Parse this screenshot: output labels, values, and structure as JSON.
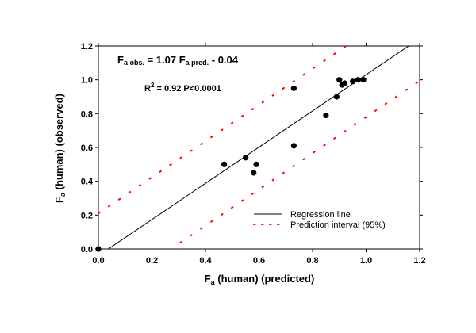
{
  "chart_data": {
    "type": "scatter",
    "xlabel": "F",
    "xlabel_sub": "a",
    "xlabel_rest": " (human) (predicted)",
    "ylabel": "F",
    "ylabel_sub": "a",
    "ylabel_rest": " (human) (observed)",
    "xlim": [
      0.0,
      1.2
    ],
    "ylim": [
      0.0,
      1.2
    ],
    "xticks": [
      "0.0",
      "0.2",
      "0.4",
      "0.6",
      "0.8",
      "1.0",
      "1.2"
    ],
    "yticks": [
      "0.0",
      "0.2",
      "0.4",
      "0.6",
      "0.8",
      "1.0",
      "1.2"
    ],
    "points": [
      {
        "x": 0.0,
        "y": 0.0
      },
      {
        "x": 0.47,
        "y": 0.5
      },
      {
        "x": 0.55,
        "y": 0.54
      },
      {
        "x": 0.58,
        "y": 0.45
      },
      {
        "x": 0.59,
        "y": 0.5
      },
      {
        "x": 0.73,
        "y": 0.61
      },
      {
        "x": 0.73,
        "y": 0.95
      },
      {
        "x": 0.85,
        "y": 0.79
      },
      {
        "x": 0.89,
        "y": 0.9
      },
      {
        "x": 0.9,
        "y": 1.0
      },
      {
        "x": 0.91,
        "y": 0.97
      },
      {
        "x": 0.92,
        "y": 0.98
      },
      {
        "x": 0.95,
        "y": 0.99
      },
      {
        "x": 0.97,
        "y": 1.0
      },
      {
        "x": 0.99,
        "y": 1.0
      }
    ],
    "regression": {
      "slope": 1.07,
      "intercept": -0.04,
      "color": "#000000"
    },
    "prediction_interval": {
      "offset": 0.25,
      "color": "#ff0000"
    },
    "annotations": {
      "equation": {
        "lhs_main": "F",
        "lhs_sub": "a obs.",
        "mid": " = 1.07 F",
        "rhs_sub": "a pred.",
        "rest": " - 0.04"
      },
      "stats": {
        "r_main": "R",
        "r_sup": "2",
        "rest": " = 0.92  P<0.0001"
      }
    },
    "legend": {
      "placement": "bottom-right",
      "entries": [
        {
          "label": "Regression line",
          "style": "solid",
          "color": "#000000"
        },
        {
          "label": "Prediction interval (95%)",
          "style": "dotted",
          "color": "#ff0000"
        }
      ]
    },
    "grid": false
  }
}
